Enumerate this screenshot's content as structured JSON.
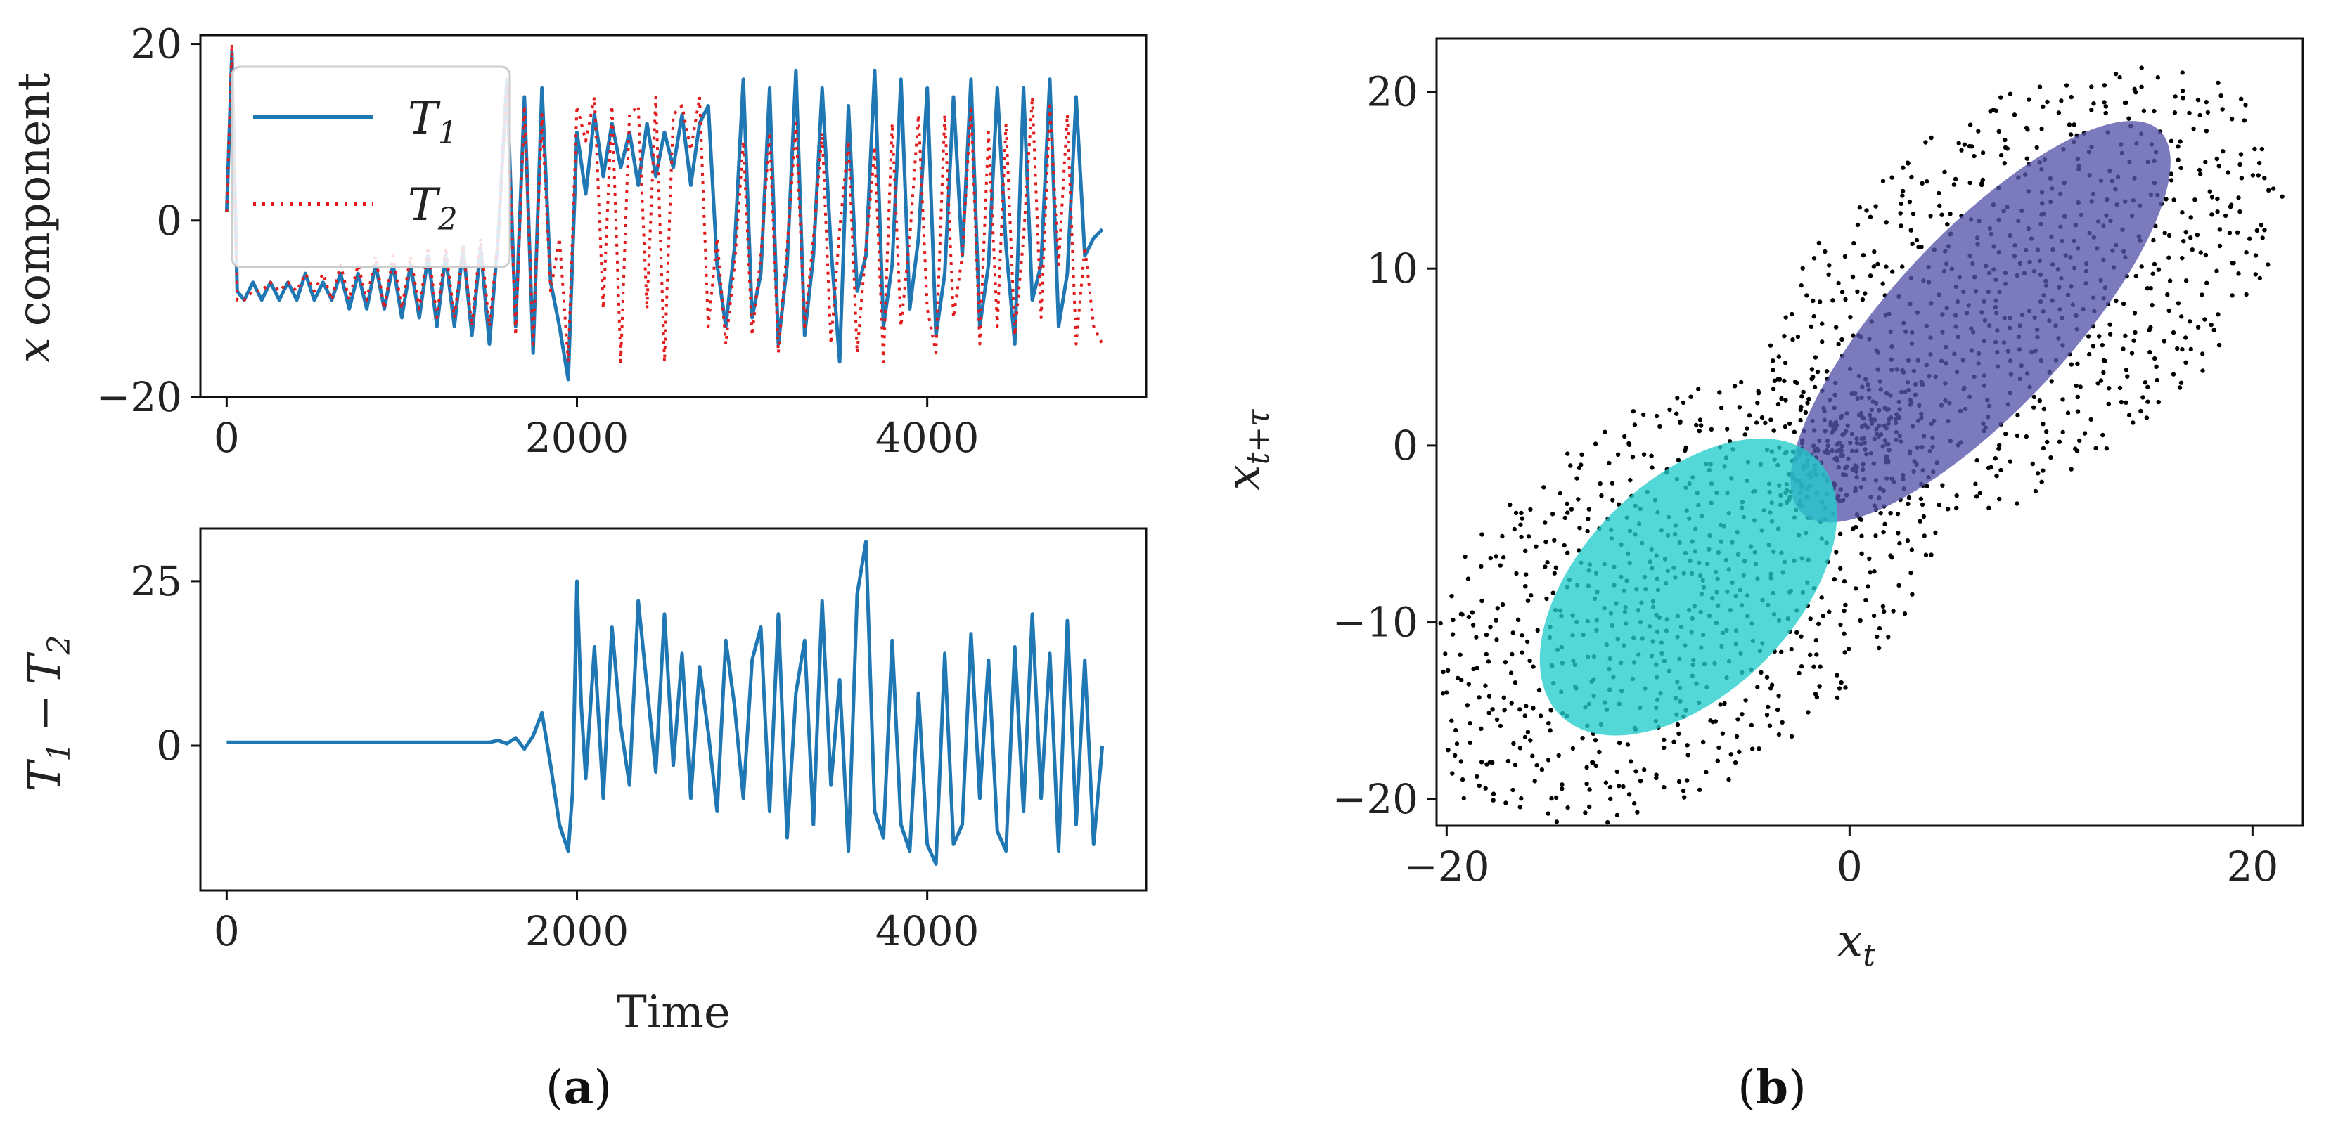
{
  "figure": {
    "caption_a": {
      "open": "(",
      "letter": "a",
      "close": ")"
    },
    "caption_b": {
      "open": "(",
      "letter": "b",
      "close": ")"
    }
  },
  "chart_data": [
    {
      "id": "a-top",
      "type": "line",
      "title": "",
      "xlabel": "",
      "ylabel_var": "x",
      "ylabel_text": "component",
      "xlim": [
        -150,
        5250
      ],
      "ylim": [
        -20,
        21
      ],
      "xticks": [
        0,
        2000,
        4000
      ],
      "yticks": [
        20,
        0,
        -20
      ],
      "ytick_labels": [
        "20",
        "0",
        "−20"
      ],
      "legend": {
        "position": "top-left",
        "entries": [
          {
            "name": "T",
            "sub": "1",
            "style": "solid",
            "color": "#1f77b4"
          },
          {
            "name": "T",
            "sub": "2",
            "style": "dotted",
            "color": "#e31a1c"
          }
        ]
      },
      "series": [
        {
          "name": "T1",
          "color": "#1f77b4",
          "style": "solid",
          "x": [
            0,
            30,
            60,
            100,
            150,
            200,
            250,
            300,
            350,
            400,
            450,
            500,
            550,
            600,
            650,
            700,
            750,
            800,
            850,
            900,
            950,
            1000,
            1050,
            1100,
            1150,
            1200,
            1250,
            1300,
            1350,
            1400,
            1450,
            1500,
            1550,
            1600,
            1650,
            1700,
            1750,
            1800,
            1850,
            1900,
            1950,
            2000,
            2050,
            2100,
            2150,
            2200,
            2250,
            2300,
            2350,
            2400,
            2450,
            2500,
            2550,
            2600,
            2650,
            2700,
            2750,
            2800,
            2850,
            2900,
            2950,
            3000,
            3050,
            3100,
            3150,
            3200,
            3250,
            3300,
            3350,
            3400,
            3450,
            3500,
            3550,
            3600,
            3650,
            3700,
            3750,
            3800,
            3850,
            3900,
            3950,
            4000,
            4050,
            4100,
            4150,
            4200,
            4250,
            4300,
            4350,
            4400,
            4450,
            4500,
            4550,
            4600,
            4650,
            4700,
            4750,
            4800,
            4850,
            4900,
            4950,
            5000
          ],
          "y": [
            1,
            19,
            -8,
            -9,
            -7,
            -9,
            -7,
            -9,
            -7,
            -9,
            -6,
            -9,
            -7,
            -9,
            -6,
            -10,
            -6,
            -10,
            -5,
            -10,
            -5,
            -11,
            -5,
            -11,
            -4,
            -12,
            -4,
            -12,
            -3,
            -13,
            -3,
            -14,
            -2,
            16,
            -12,
            14,
            -15,
            15,
            -7,
            -12,
            -18,
            10,
            3,
            12,
            5,
            11,
            6,
            10,
            4,
            11,
            5,
            10,
            6,
            12,
            4,
            11,
            13,
            -5,
            -12,
            -3,
            16,
            -11,
            -6,
            15,
            -14,
            -5,
            17,
            -13,
            -4,
            15,
            -3,
            -16,
            13,
            -8,
            -4,
            17,
            -12,
            -5,
            16,
            -10,
            -2,
            15,
            -13,
            -6,
            14,
            -4,
            16,
            -12,
            -5,
            15,
            -3,
            -14,
            15,
            -9,
            -5,
            16,
            -12,
            -6,
            14,
            -4,
            -2,
            -1
          ]
        },
        {
          "name": "T2",
          "color": "#e31a1c",
          "style": "dotted",
          "x": [
            0,
            30,
            60,
            100,
            150,
            200,
            250,
            300,
            350,
            400,
            450,
            500,
            550,
            600,
            650,
            700,
            750,
            800,
            850,
            900,
            950,
            1000,
            1050,
            1100,
            1150,
            1200,
            1250,
            1300,
            1350,
            1400,
            1450,
            1500,
            1550,
            1600,
            1650,
            1700,
            1750,
            1800,
            1850,
            1900,
            1950,
            2000,
            2050,
            2100,
            2150,
            2200,
            2250,
            2300,
            2350,
            2400,
            2450,
            2500,
            2550,
            2600,
            2650,
            2700,
            2750,
            2800,
            2850,
            2900,
            2950,
            3000,
            3050,
            3100,
            3150,
            3200,
            3250,
            3300,
            3350,
            3400,
            3450,
            3500,
            3550,
            3600,
            3650,
            3700,
            3750,
            3800,
            3850,
            3900,
            3950,
            4000,
            4050,
            4100,
            4150,
            4200,
            4250,
            4300,
            4350,
            4400,
            4450,
            4500,
            4550,
            4600,
            4650,
            4700,
            4750,
            4800,
            4850,
            4900,
            4950,
            5000
          ],
          "y": [
            1,
            20,
            -9,
            -9,
            -8,
            -8,
            -7,
            -8,
            -7,
            -8,
            -6,
            -8,
            -6,
            -9,
            -5,
            -9,
            -5,
            -9,
            -4,
            -10,
            -4,
            -10,
            -4,
            -10,
            -3,
            -11,
            -3,
            -11,
            -3,
            -12,
            -2,
            -12,
            -2,
            15,
            -13,
            13,
            -14,
            12,
            -8,
            -2,
            -16,
            13,
            9,
            14,
            -10,
            13,
            -16,
            12,
            13,
            -10,
            14,
            -16,
            12,
            13,
            8,
            14,
            -12,
            -2,
            -14,
            -5,
            9,
            -13,
            -4,
            10,
            -15,
            -3,
            11,
            -12,
            -2,
            10,
            -14,
            -1,
            9,
            -15,
            -3,
            8,
            -16,
            11,
            -12,
            -2,
            12,
            -10,
            -15,
            12,
            -11,
            -4,
            13,
            -14,
            10,
            -12,
            11,
            -13,
            -2,
            14,
            -11,
            13,
            -5,
            12,
            -14,
            -3,
            -12,
            -14
          ]
        }
      ]
    },
    {
      "id": "a-bottom",
      "type": "line",
      "title": "",
      "xlabel": "Time",
      "ylabel": "T1 − T2",
      "ylabel_parts": {
        "t1": "T",
        "s1": "1",
        "minus": "−",
        "t2": "T",
        "s2": "2"
      },
      "xlim": [
        -150,
        5250
      ],
      "ylim": [
        -22,
        33
      ],
      "xticks": [
        0,
        2000,
        4000
      ],
      "yticks": [
        25,
        0
      ],
      "series": [
        {
          "name": "T1 - T2",
          "color": "#1f77b4",
          "style": "solid",
          "x": [
            0,
            100,
            200,
            300,
            400,
            500,
            600,
            700,
            800,
            900,
            1000,
            1100,
            1200,
            1300,
            1400,
            1500,
            1550,
            1600,
            1650,
            1700,
            1750,
            1800,
            1850,
            1900,
            1950,
            1975,
            2000,
            2025,
            2050,
            2100,
            2150,
            2200,
            2250,
            2300,
            2350,
            2400,
            2450,
            2500,
            2550,
            2600,
            2650,
            2700,
            2750,
            2800,
            2850,
            2900,
            2950,
            3000,
            3050,
            3100,
            3150,
            3200,
            3250,
            3300,
            3350,
            3400,
            3450,
            3500,
            3550,
            3600,
            3650,
            3700,
            3750,
            3800,
            3850,
            3900,
            3950,
            4000,
            4050,
            4100,
            4150,
            4200,
            4250,
            4300,
            4350,
            4400,
            4450,
            4500,
            4550,
            4600,
            4650,
            4700,
            4750,
            4800,
            4850,
            4900,
            4950,
            5000
          ],
          "y": [
            0.5,
            0.5,
            0.5,
            0.5,
            0.5,
            0.5,
            0.5,
            0.5,
            0.5,
            0.5,
            0.5,
            0.5,
            0.5,
            0.5,
            0.5,
            0.5,
            0.8,
            0.3,
            1.2,
            -0.5,
            1.5,
            5,
            -3,
            -12,
            -16,
            -7,
            25,
            6,
            -5,
            15,
            -8,
            18,
            3,
            -6,
            22,
            9,
            -4,
            20,
            -3,
            14,
            -8,
            12,
            2,
            -10,
            16,
            6,
            -8,
            13,
            18,
            -10,
            20,
            -14,
            8,
            16,
            -12,
            22,
            -6,
            10,
            -16,
            23,
            31,
            -10,
            -14,
            16,
            -12,
            -16,
            8,
            -15,
            -18,
            14,
            -15,
            -12,
            17,
            -8,
            13,
            -13,
            -16,
            15,
            -10,
            20,
            -8,
            14,
            -16,
            19,
            -12,
            13,
            -15,
            0
          ]
        }
      ]
    },
    {
      "id": "b",
      "type": "scatter",
      "title": "",
      "xlabel_var": "x",
      "xlabel_sub": "t",
      "ylabel_var": "x",
      "ylabel_sub": "t+τ",
      "xlim": [
        -20.5,
        22.5
      ],
      "ylim": [
        -21.5,
        23
      ],
      "xticks": [
        -20,
        0,
        20
      ],
      "xtick_labels": [
        "−20",
        "0",
        "20"
      ],
      "yticks": [
        20,
        10,
        0,
        -10,
        -20
      ],
      "ytick_labels": [
        "20",
        "10",
        "0",
        "−10",
        "−20"
      ],
      "point_color": "#000000",
      "lobes": [
        {
          "center": [
            8.5,
            8.5
          ],
          "radius": 8,
          "rings": 18
        },
        {
          "center": [
            -8.5,
            -8.5
          ],
          "radius": 8,
          "rings": 18
        }
      ],
      "ellipses": [
        {
          "name": "upper-cluster",
          "color": "#5555aa",
          "center": [
            6.5,
            7
          ],
          "semi_major": 13,
          "semi_minor": 5,
          "angle_deg": 47
        },
        {
          "name": "lower-cluster",
          "color": "#22cccc",
          "center": [
            -8,
            -8
          ],
          "semi_major": 9,
          "semi_minor": 6,
          "angle_deg": 45
        }
      ]
    }
  ]
}
